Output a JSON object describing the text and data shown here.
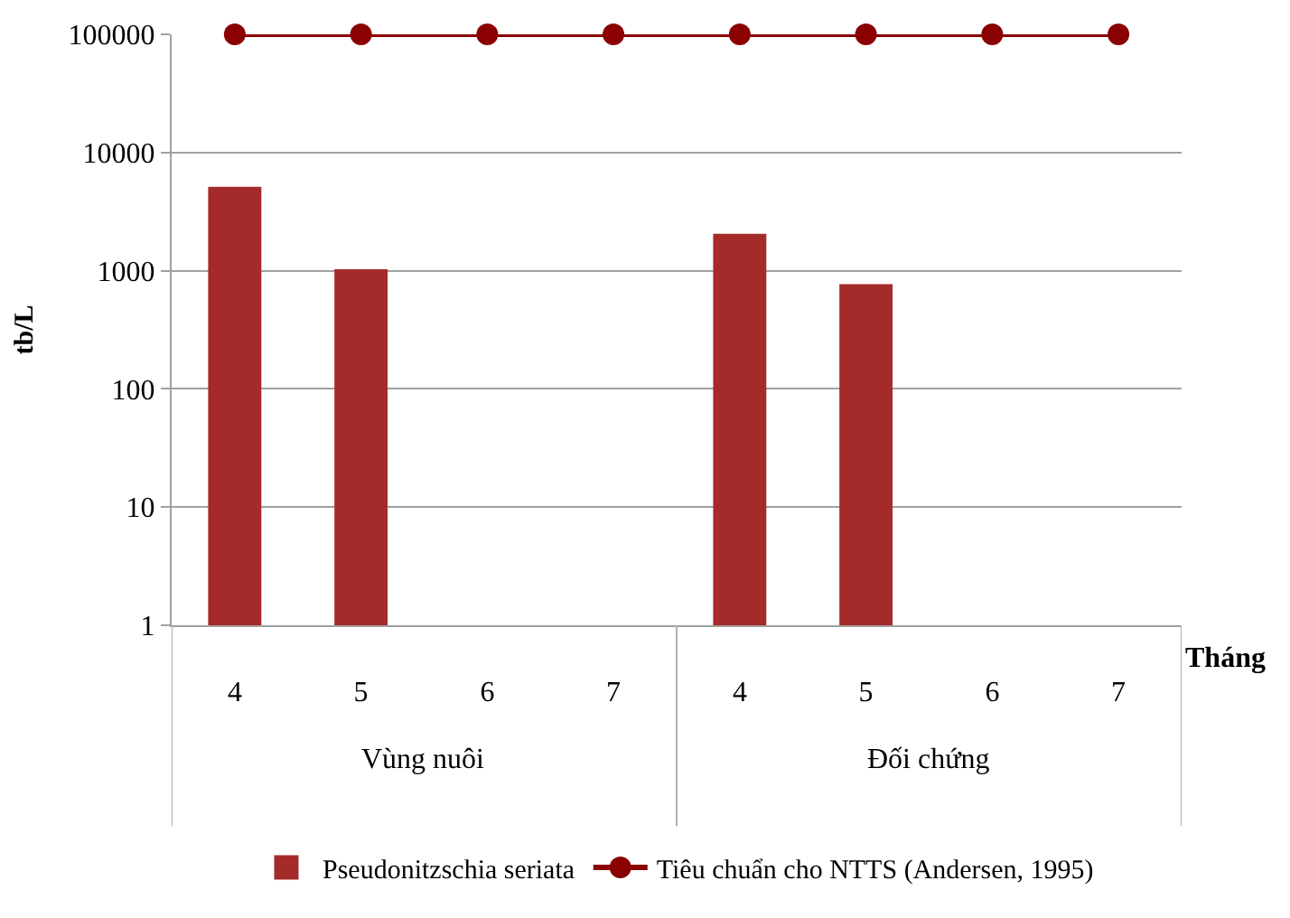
{
  "chart_data": {
    "type": "bar",
    "ylabel": "tb/L",
    "xlabel": "Tháng",
    "categories": [
      "4",
      "5",
      "6",
      "7",
      "4",
      "5",
      "6",
      "7"
    ],
    "annotations": [
      "Vùng nuôi",
      "Đối chứng"
    ],
    "series": [
      {
        "name": "Pseudonitzschia seriata",
        "color": "#a52a2a",
        "values": [
          5000,
          1000,
          null,
          null,
          2000,
          750,
          null,
          null
        ]
      },
      {
        "name": "Tiêu chuẩn cho NTTS (Andersen, 1995)",
        "type": "line",
        "color": "#8b0000",
        "marker": "circle",
        "values": [
          100000,
          100000,
          100000,
          100000,
          100000,
          100000,
          100000,
          100000
        ]
      }
    ],
    "log": "y",
    "ylim": [
      1,
      100000
    ],
    "yticks": [
      1,
      10,
      100,
      1000,
      10000,
      100000
    ],
    "grid": "y",
    "legend": "bottom"
  }
}
